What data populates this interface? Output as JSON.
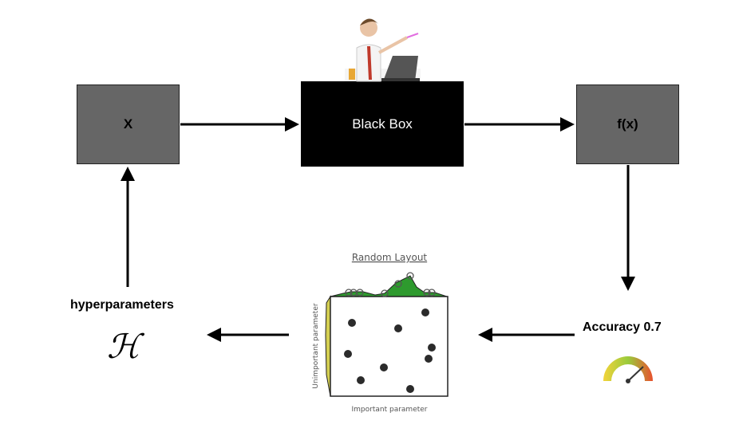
{
  "diagram": {
    "input_box": {
      "label": "X"
    },
    "black_box": {
      "label": "Black Box"
    },
    "output_box": {
      "label": "f(x)"
    },
    "accuracy": {
      "label": "Accuracy 0.7"
    },
    "hyperparameters": {
      "label": "hyperparameters",
      "symbol": "ℋ"
    },
    "random_layout": {
      "title": "Random Layout",
      "x_label": "Important parameter",
      "y_label": "Unimportant parameter"
    }
  }
}
